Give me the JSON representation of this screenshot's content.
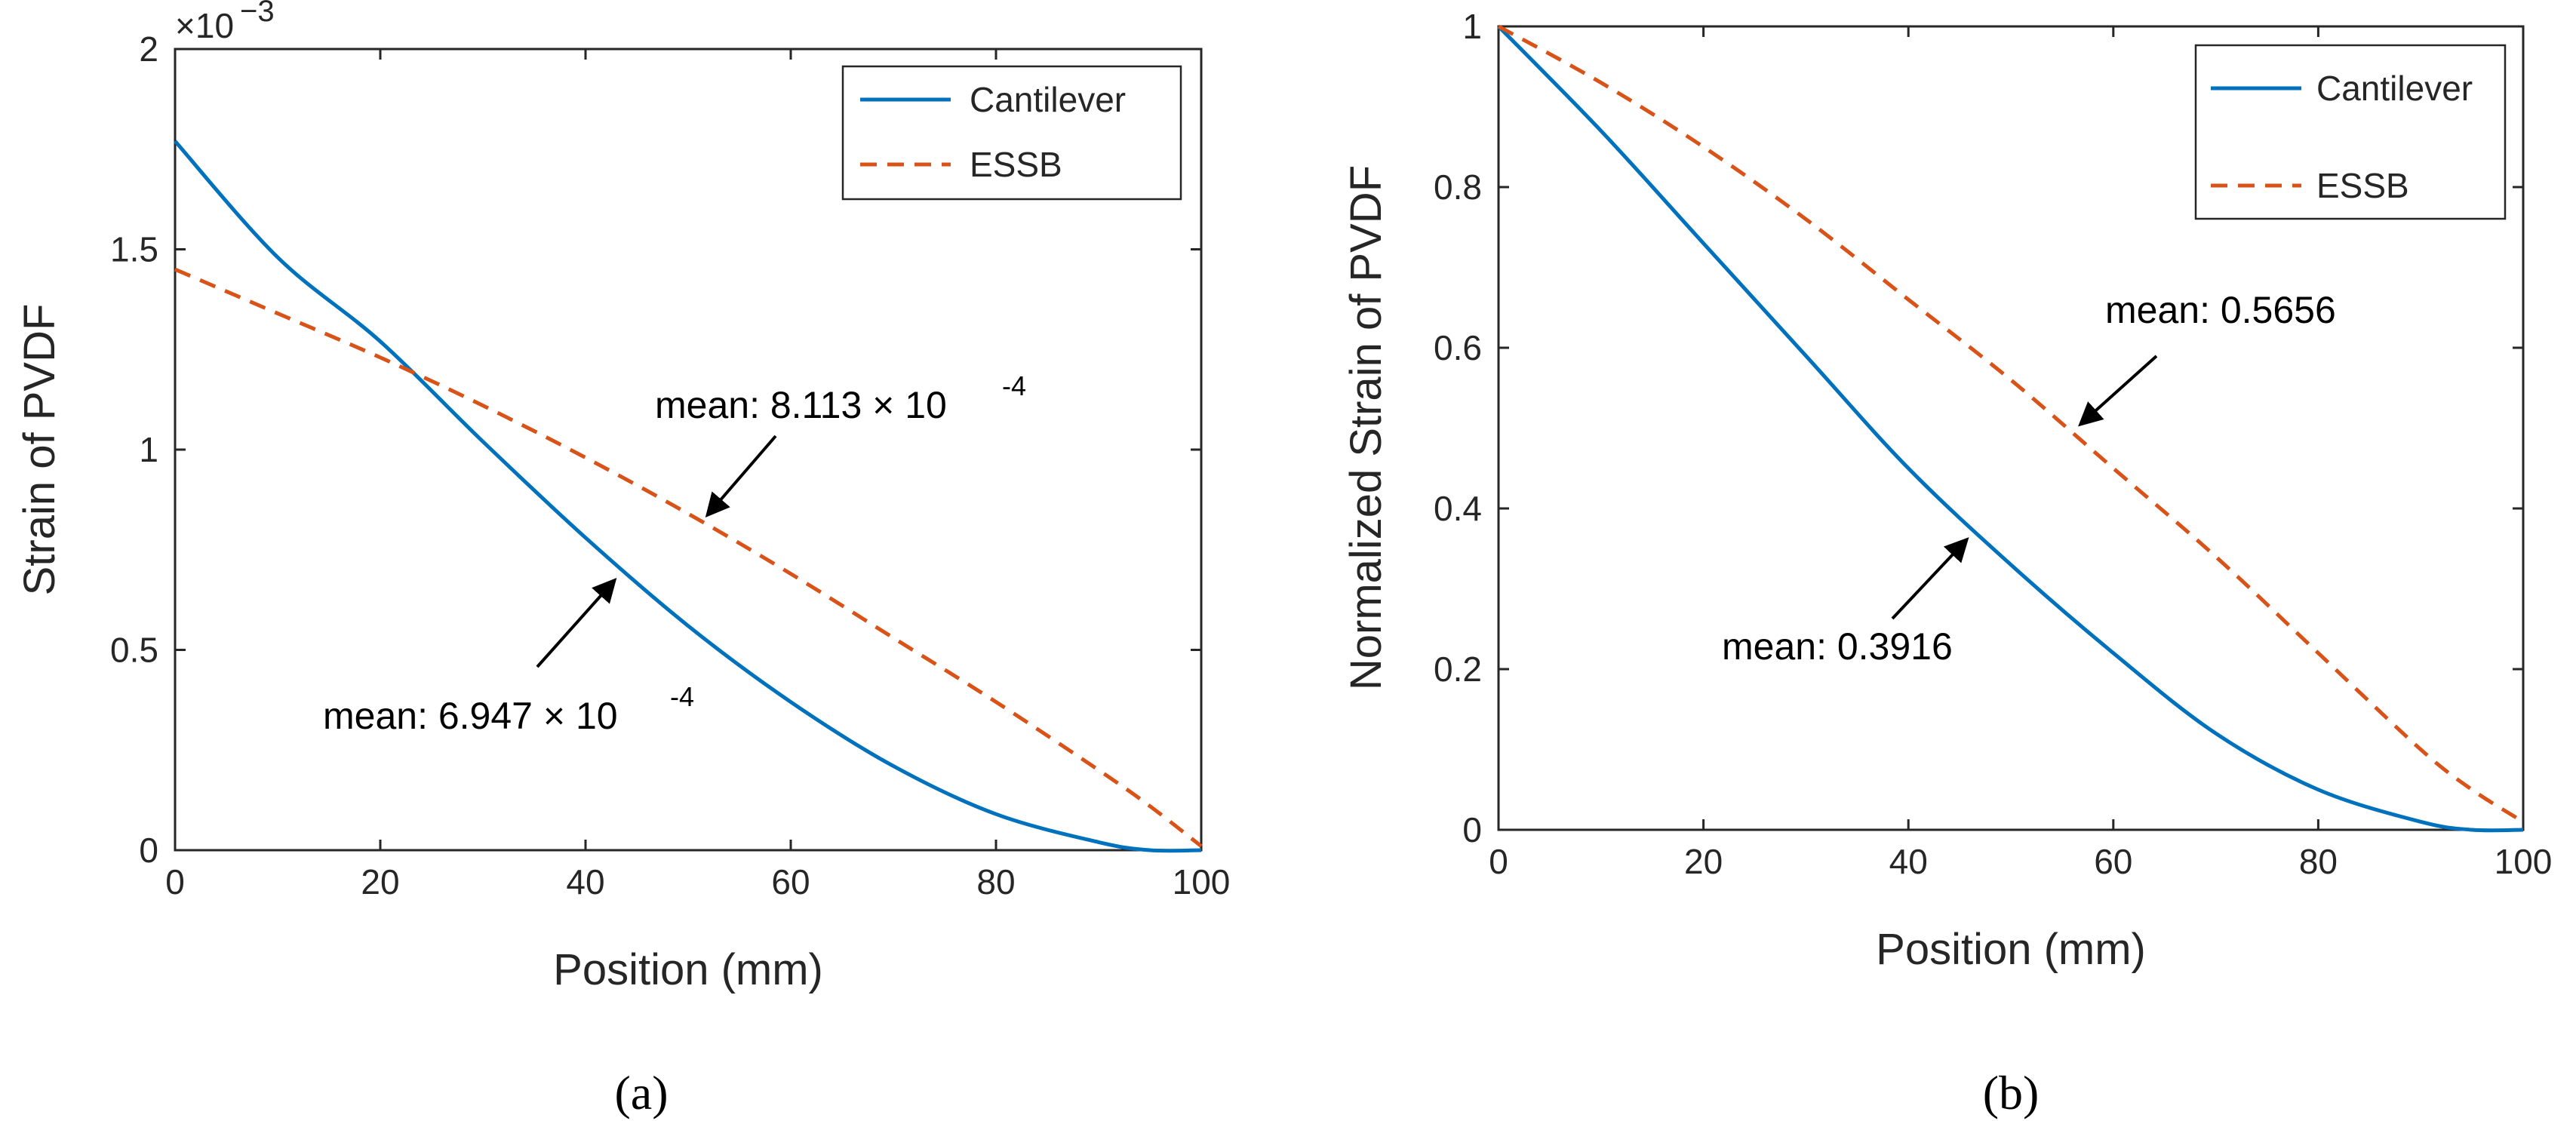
{
  "colors": {
    "cantilever": "#0072BD",
    "essb": "#D95319",
    "axis": "#262626"
  },
  "chart_data": [
    {
      "type": "line",
      "panel_label": "(a)",
      "xlabel": "Position (mm)",
      "ylabel": "Strain of PVDF",
      "xlim": [
        0,
        100
      ],
      "ylim": [
        0,
        0.002
      ],
      "xticks": [
        0,
        20,
        40,
        60,
        80,
        100
      ],
      "yticks": [
        0,
        0.0005,
        0.001,
        0.0015,
        0.002
      ],
      "ytick_labels": [
        "0",
        "0.5",
        "1",
        "1.5",
        "2"
      ],
      "y_exponent": "×10",
      "y_exponent_power": "−3",
      "legend": {
        "position": "top-right",
        "entries": [
          "Cantilever",
          "ESSB"
        ]
      },
      "x": [
        0,
        10,
        20,
        30,
        40,
        50,
        60,
        70,
        80,
        90,
        95,
        100
      ],
      "series": [
        {
          "name": "Cantilever",
          "style": "solid",
          "values": [
            0.00177,
            0.00148,
            0.00127,
            0.00102,
            0.00078,
            0.00056,
            0.00037,
            0.00021,
            9e-05,
            2e-05,
            0.0,
            0.0
          ]
        },
        {
          "name": "ESSB",
          "style": "dashed",
          "values": [
            0.00145,
            0.00134,
            0.00123,
            0.00111,
            0.00098,
            0.00084,
            0.00069,
            0.00053,
            0.00037,
            0.0002,
            0.00011,
            1e-05
          ]
        }
      ],
      "annotations": [
        {
          "text": "mean: 8.113 × 10",
          "power": "-4",
          "x": 51,
          "y": 0.00083,
          "series": "ESSB"
        },
        {
          "text": "mean: 6.947 × 10",
          "power": "-4",
          "x": 43,
          "y": 0.00073,
          "series": "Cantilever"
        }
      ]
    },
    {
      "type": "line",
      "panel_label": "(b)",
      "xlabel": "Position (mm)",
      "ylabel": "Normalized Strain of PVDF",
      "xlim": [
        0,
        100
      ],
      "ylim": [
        0,
        1
      ],
      "xticks": [
        0,
        20,
        40,
        60,
        80,
        100
      ],
      "yticks": [
        0,
        0.2,
        0.4,
        0.6,
        0.8,
        1
      ],
      "ytick_labels": [
        "0",
        "0.2",
        "0.4",
        "0.6",
        "0.8",
        "1"
      ],
      "legend": {
        "position": "top-right",
        "entries": [
          "Cantilever",
          "ESSB"
        ]
      },
      "x": [
        0,
        10,
        20,
        30,
        40,
        50,
        60,
        70,
        80,
        90,
        95,
        100
      ],
      "series": [
        {
          "name": "Cantilever",
          "style": "solid",
          "values": [
            1.0,
            0.87,
            0.73,
            0.59,
            0.45,
            0.33,
            0.22,
            0.12,
            0.05,
            0.01,
            0.0,
            0.0
          ]
        },
        {
          "name": "ESSB",
          "style": "dashed",
          "values": [
            1.0,
            0.93,
            0.85,
            0.76,
            0.66,
            0.56,
            0.45,
            0.34,
            0.22,
            0.1,
            0.05,
            0.01
          ]
        }
      ],
      "annotations": [
        {
          "text": "mean: 0.5656",
          "x": 55,
          "y": 0.53,
          "series": "ESSB"
        },
        {
          "text": "mean: 0.3916",
          "x": 45,
          "y": 0.39,
          "series": "Cantilever"
        }
      ]
    }
  ]
}
